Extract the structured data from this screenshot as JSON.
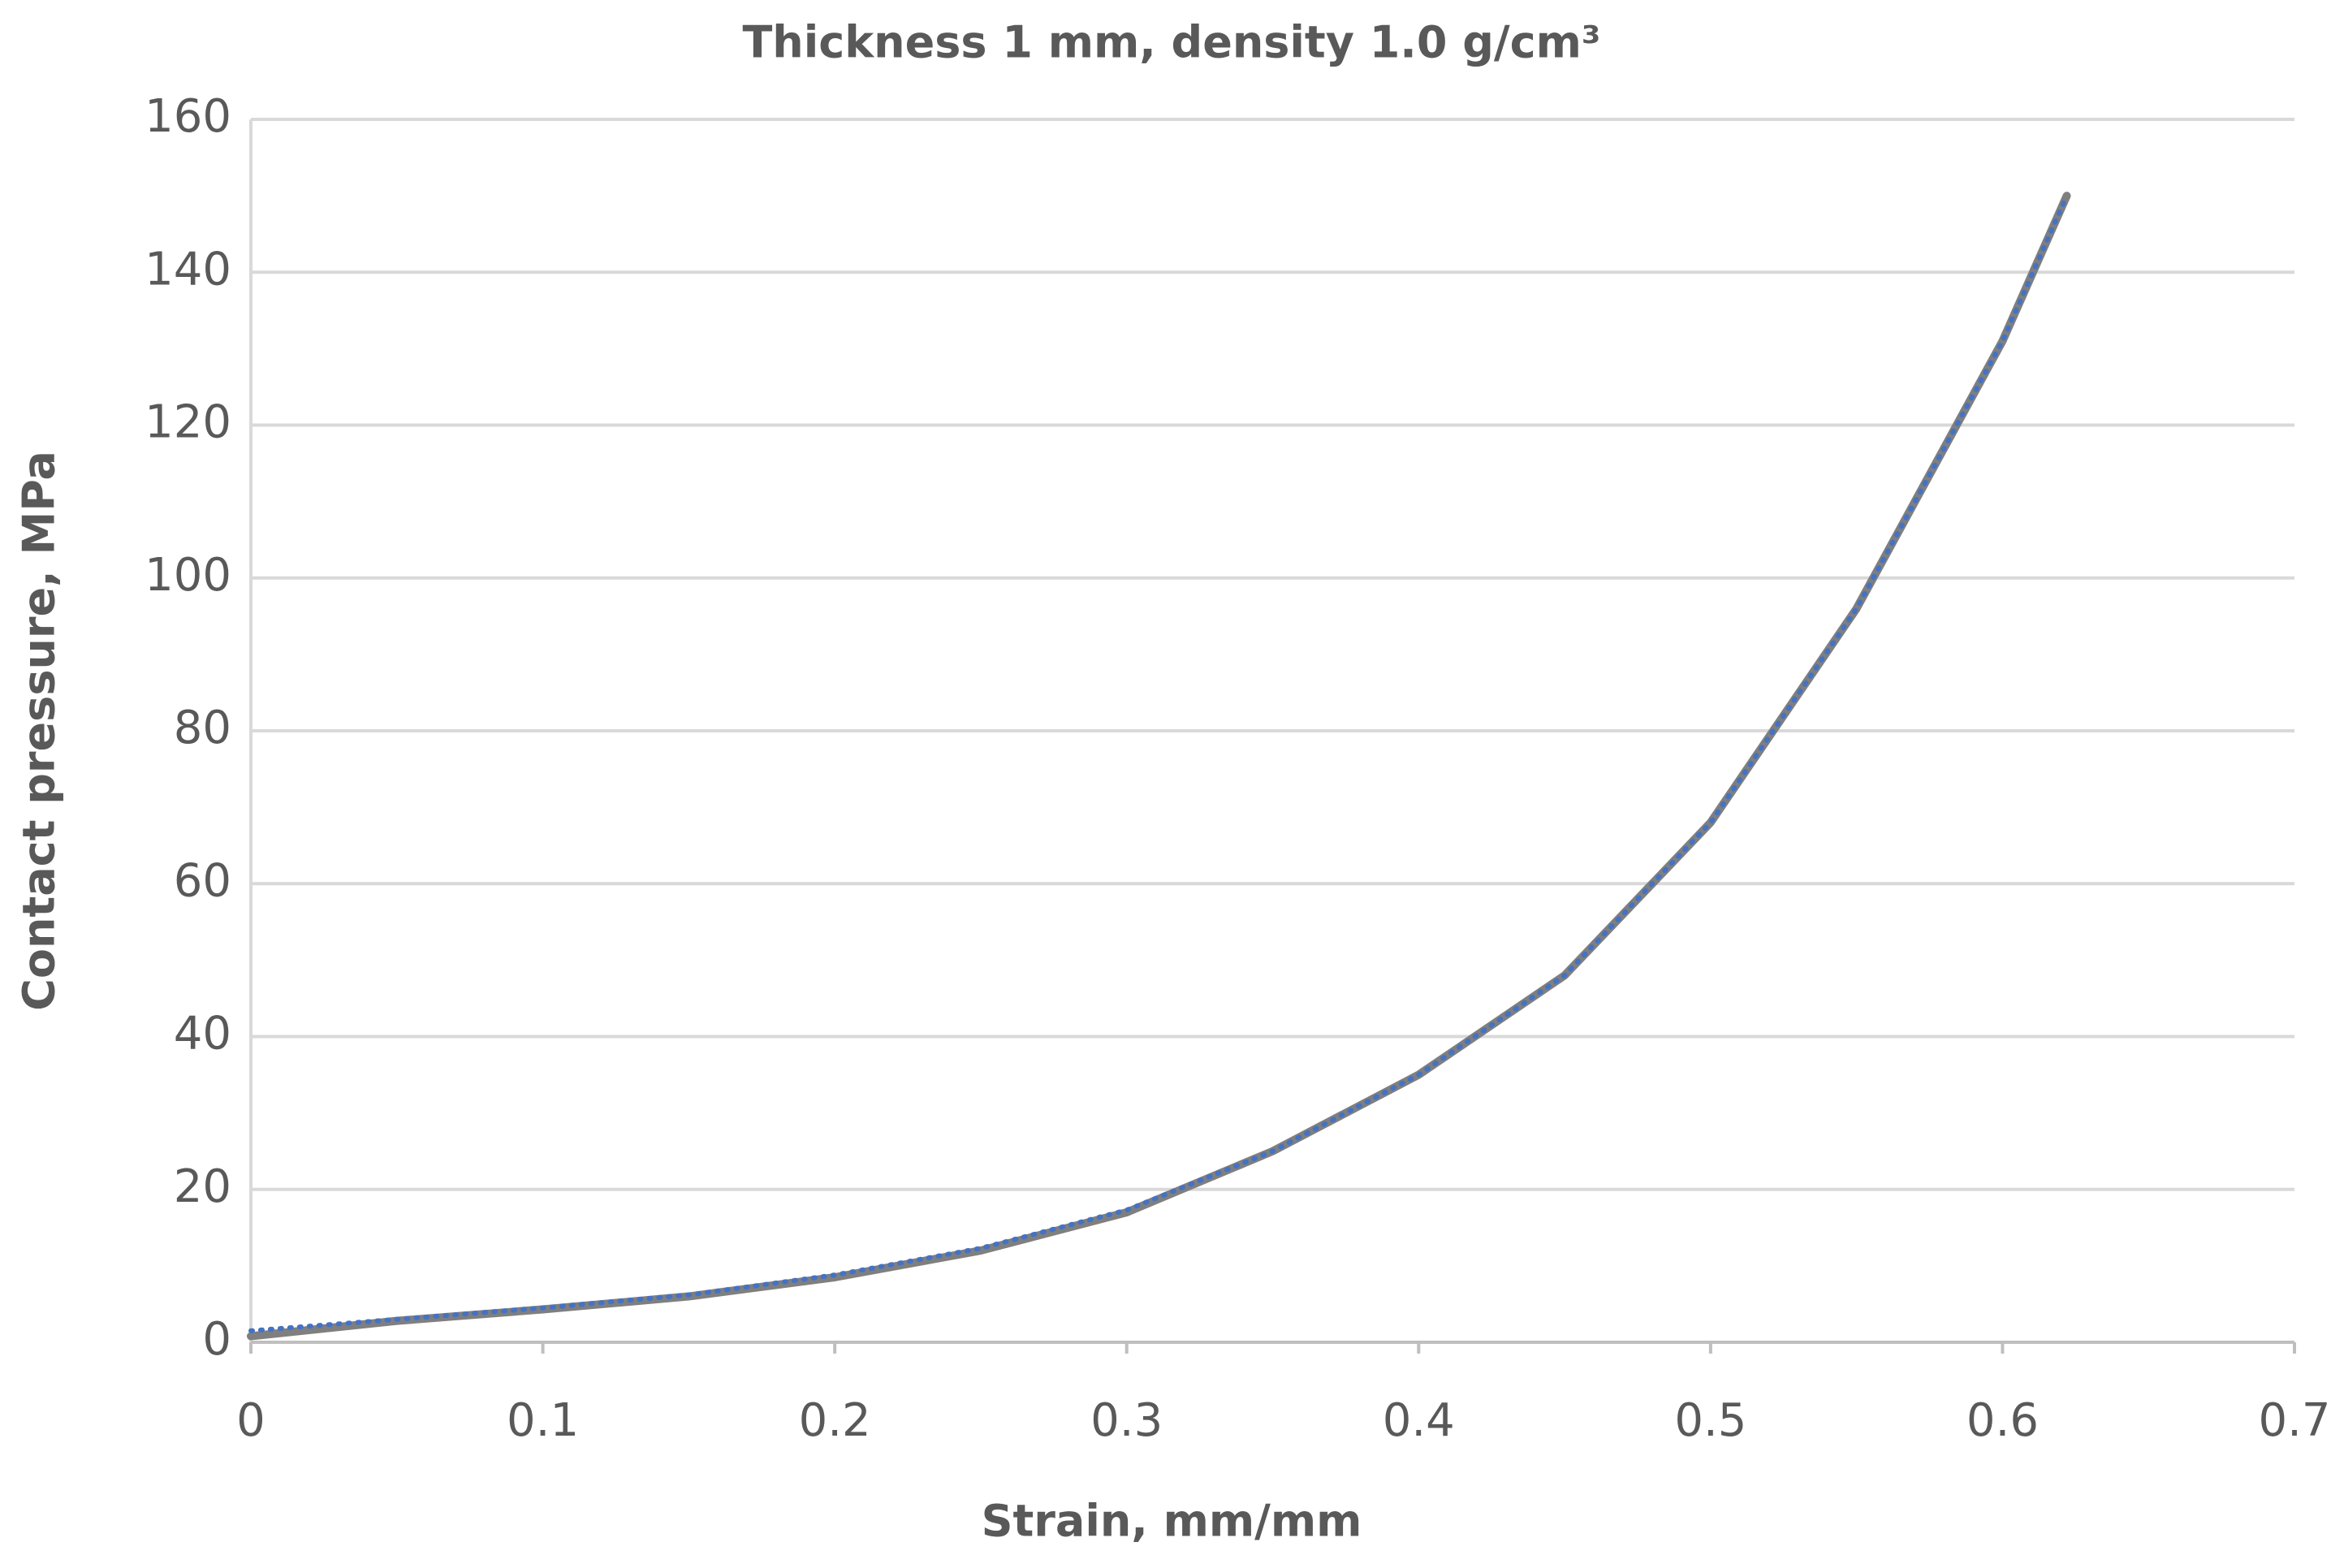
{
  "chart_data": {
    "type": "line",
    "title": "Thickness 1 mm, density 1.0 g/cm³",
    "x_label": "Strain, mm/mm",
    "y_label": "Contact pressure, MPa",
    "x": [
      0,
      0.05,
      0.1,
      0.15,
      0.2,
      0.25,
      0.3,
      0.35,
      0.4,
      0.45,
      0.5,
      0.55,
      0.6,
      0.622
    ],
    "series": [
      {
        "color": "#7f7f7f",
        "style": "solid",
        "values": [
          0.8,
          2.8,
          4.3,
          6,
          8.5,
          12,
          17,
          25,
          35,
          48,
          68,
          96,
          131,
          150
        ]
      },
      {
        "color": "#4472c4",
        "style": "dotted",
        "values": [
          1.5,
          3,
          4.5,
          6.2,
          8.8,
          12.3,
          17.3,
          25,
          35,
          48,
          68,
          96,
          131,
          150
        ]
      }
    ],
    "xlim": [
      0,
      0.7
    ],
    "xticks": [
      0,
      0.1,
      0.2,
      0.3,
      0.4,
      0.5,
      0.6,
      0.7
    ],
    "ylim": [
      0,
      160
    ],
    "yticks": [
      0,
      20,
      40,
      60,
      80,
      100,
      120,
      140,
      160
    ],
    "grid": true
  }
}
